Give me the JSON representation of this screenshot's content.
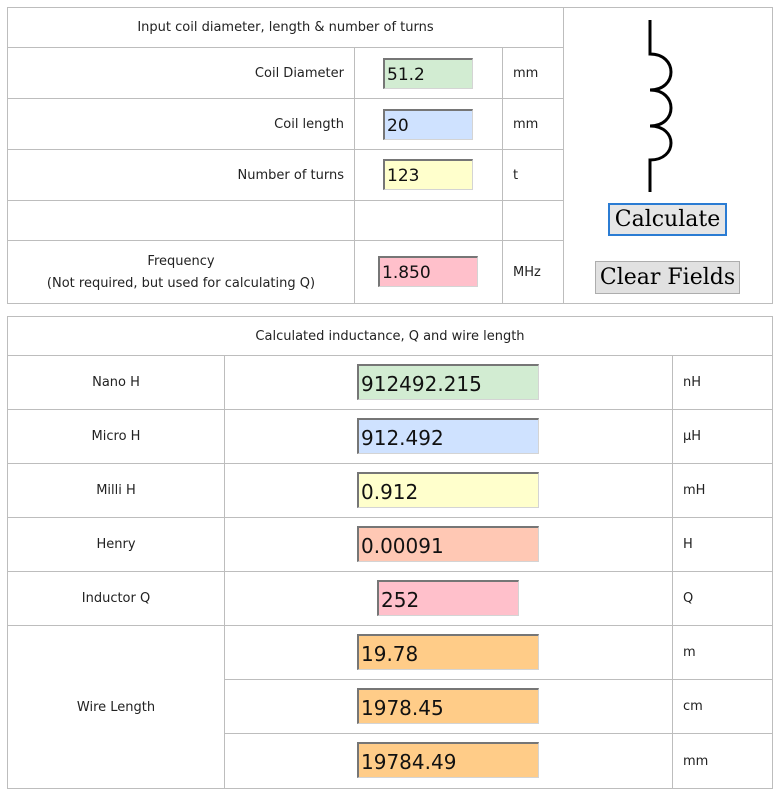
{
  "input_section": {
    "header": "Input coil diameter, length & number of turns",
    "rows": [
      {
        "label": "Coil Diameter",
        "value": "51.2",
        "unit": "mm",
        "color": "#d2ecd2"
      },
      {
        "label": "Coil length",
        "value": "20",
        "unit": "mm",
        "color": "#cfe2ff"
      },
      {
        "label": "Number of turns",
        "value": "123",
        "unit": "t",
        "color": "#ffffcc"
      }
    ],
    "frequency": {
      "label_line1": "Frequency",
      "label_line2": "(Not required, but used for calculating Q)",
      "value": "1.850",
      "unit": "MHz",
      "color": "#ffc0cb"
    }
  },
  "buttons": {
    "calculate": "Calculate",
    "clear": "Clear Fields"
  },
  "icon": "inductor-coil-icon",
  "output_section": {
    "header": "Calculated inductance, Q and wire length",
    "rows": [
      {
        "label": "Nano H",
        "value": "912492.215",
        "unit": "nH",
        "color": "#d2ecd2"
      },
      {
        "label": "Micro H",
        "value": "912.492",
        "unit": "µH",
        "color": "#cfe2ff"
      },
      {
        "label": "Milli H",
        "value": "0.912",
        "unit": "mH",
        "color": "#ffffcc"
      },
      {
        "label": "Henry",
        "value": "0.00091",
        "unit": "H",
        "color": "#ffc8b4"
      },
      {
        "label": "Inductor Q",
        "value": "252",
        "unit": "Q",
        "color": "#ffc0cb"
      }
    ],
    "wire_length": {
      "label": "Wire Length",
      "values": [
        {
          "value": "19.78",
          "unit": "m"
        },
        {
          "value": "1978.45",
          "unit": "cm"
        },
        {
          "value": "19784.49",
          "unit": "mm"
        }
      ],
      "color": "#ffcc88"
    }
  }
}
